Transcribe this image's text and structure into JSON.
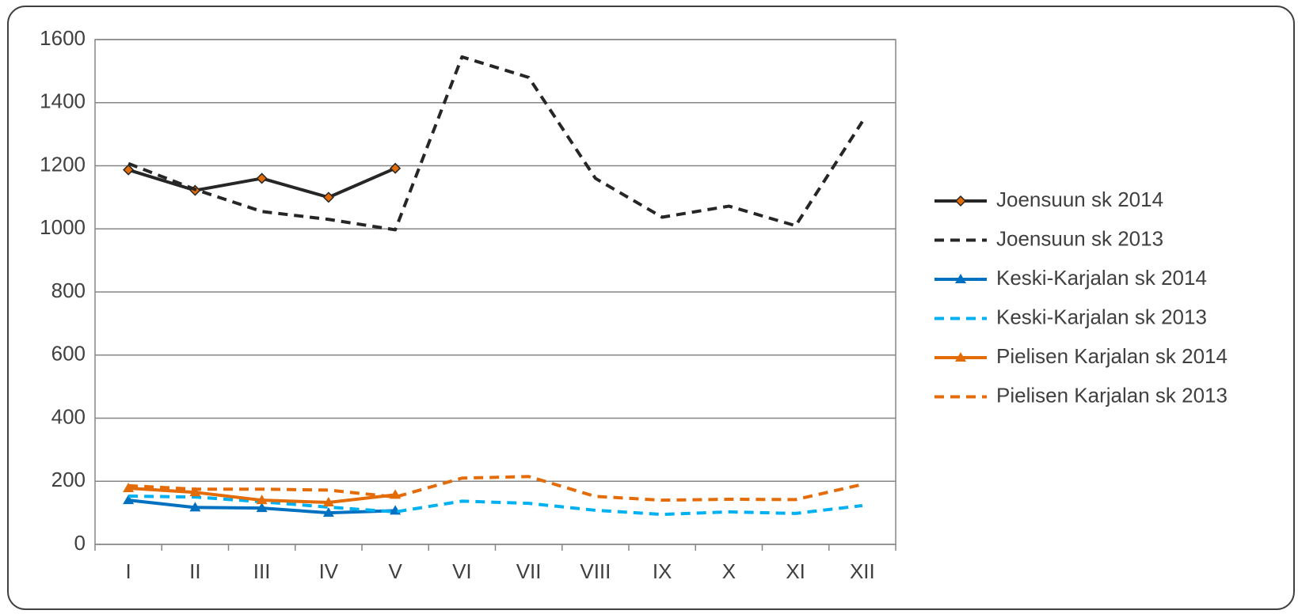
{
  "chart_data": {
    "type": "line",
    "categories": [
      "I",
      "II",
      "III",
      "IV",
      "V",
      "VI",
      "VII",
      "VIII",
      "IX",
      "X",
      "XI",
      "XII"
    ],
    "series": [
      {
        "name": "Joensuun sk 2014",
        "color": "#262626",
        "dash": false,
        "marker": "diamond",
        "values": [
          1187,
          1122,
          1160,
          1100,
          1192,
          null,
          null,
          null,
          null,
          null,
          null,
          null
        ]
      },
      {
        "name": "Joensuun sk 2013",
        "color": "#262626",
        "dash": true,
        "values": [
          1207,
          1125,
          1055,
          1030,
          997,
          1545,
          1480,
          1160,
          1037,
          1072,
          1010,
          1340
        ]
      },
      {
        "name": "Keski-Karjalan sk 2014",
        "color": "#0070c0",
        "dash": false,
        "marker": "triangle",
        "values": [
          140,
          117,
          115,
          100,
          107,
          null,
          null,
          null,
          null,
          null,
          null,
          null
        ]
      },
      {
        "name": "Keski-Karjalan sk 2013",
        "color": "#00b0f0",
        "dash": true,
        "values": [
          153,
          150,
          135,
          118,
          103,
          137,
          130,
          108,
          95,
          103,
          98,
          123
        ]
      },
      {
        "name": "Pielisen Karjalan sk 2014",
        "color": "#e36c09",
        "dash": false,
        "marker": "triangle",
        "values": [
          178,
          165,
          140,
          133,
          157,
          null,
          null,
          null,
          null,
          null,
          null,
          null
        ]
      },
      {
        "name": "Pielisen Karjalan sk 2013",
        "color": "#e36c09",
        "dash": true,
        "values": [
          186,
          175,
          175,
          172,
          150,
          210,
          215,
          152,
          140,
          143,
          142,
          190
        ]
      }
    ],
    "ylim": [
      0,
      1600
    ],
    "yticks": [
      0,
      200,
      400,
      600,
      800,
      1000,
      1200,
      1400,
      1600
    ],
    "grid": true,
    "legend": "right"
  }
}
